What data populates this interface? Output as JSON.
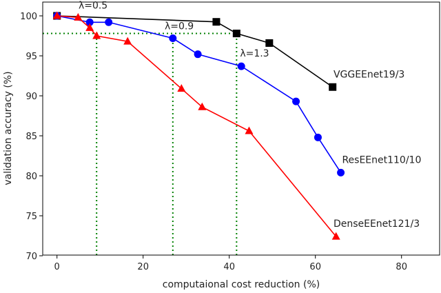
{
  "chart_data": {
    "type": "line",
    "title": "",
    "xlabel": "computaional cost reduction (%)",
    "ylabel": "validation accuracy (%)",
    "xlim": [
      -3.5,
      89
    ],
    "ylim": [
      69.8,
      101.7
    ],
    "xticks": [
      0,
      20,
      40,
      60,
      80
    ],
    "yticks": [
      70,
      75,
      80,
      85,
      90,
      95,
      100
    ],
    "grid": false,
    "series": [
      {
        "name": "VGGEEnet19/3",
        "color": "#000000",
        "marker": "square",
        "x": [
          0,
          37,
          41.7,
          49.3,
          64
        ],
        "y": [
          100,
          99.25,
          97.8,
          96.6,
          91.1
        ]
      },
      {
        "name": "ResEEnet110/10",
        "color": "#0000ff",
        "marker": "circle",
        "x": [
          0,
          7.6,
          12,
          26.9,
          32.7,
          42.8,
          55.5,
          60.6,
          65.9
        ],
        "y": [
          100,
          99.2,
          99.2,
          97.2,
          95.2,
          93.7,
          89.3,
          84.8,
          80.4
        ]
      },
      {
        "name": "DenseEEnet121/3",
        "color": "#ff0000",
        "marker": "triangle",
        "x": [
          0,
          4.9,
          7.6,
          9.2,
          16.4,
          28.9,
          33.7,
          44.6,
          64.8
        ],
        "y": [
          100,
          99.8,
          98.5,
          97.5,
          96.8,
          90.9,
          88.6,
          85.6,
          72.4
        ]
      }
    ],
    "reference_lines": {
      "color": "#008000",
      "horizontal_y": 97.8,
      "horizontal_x_end": 41.7,
      "verticals": [
        {
          "x": 9.2,
          "y_top": 97.5
        },
        {
          "x": 26.9,
          "y_top": 97.2
        },
        {
          "x": 41.7,
          "y_top": 97.8
        }
      ]
    },
    "annotations": [
      {
        "text": "λ=0.5",
        "x": 5,
        "y": 100.9
      },
      {
        "text": "λ=0.9",
        "x": 25,
        "y": 98.3
      },
      {
        "text": "λ=1.3",
        "x": 42.5,
        "y": 94.9
      }
    ],
    "series_labels": [
      {
        "text": "VGGEEnet19/3",
        "x": 64.2,
        "y": 92.3
      },
      {
        "text": "ResEEnet110/10",
        "x": 66.2,
        "y": 81.6
      },
      {
        "text": "DenseEEnet121/3",
        "x": 64.2,
        "y": 73.6
      }
    ]
  }
}
